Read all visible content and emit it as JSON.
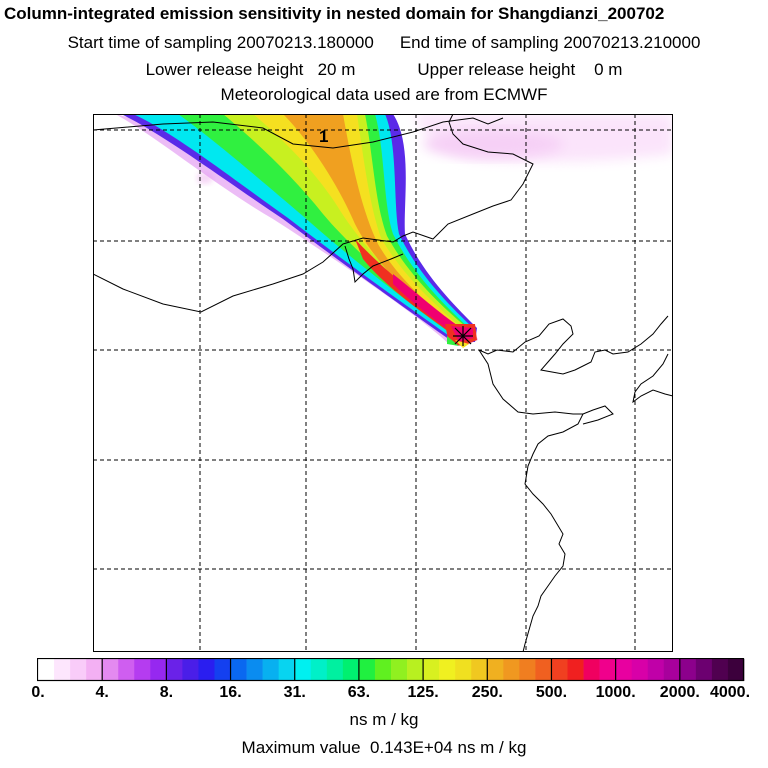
{
  "header": {
    "title": "Column-integrated emission sensitivity in nested domain for Shangdianzi_200702",
    "start_label": "Start time of sampling",
    "start_value": "20070213.180000",
    "end_label": "End time of sampling",
    "end_value": "20070213.210000",
    "lower_label": "Lower release height",
    "lower_value": "20 m",
    "upper_label": "Upper release height",
    "upper_value": "0 m",
    "met_line": "Meteorological data used are from ECMWF"
  },
  "map": {
    "contour_label": "1",
    "receptor_marker": "receptor-star"
  },
  "colorbar": {
    "tick_labels": [
      "0.",
      "4.",
      "8.",
      "16.",
      "31.",
      "63.",
      "125.",
      "250.",
      "500.",
      "1000.",
      "2000.",
      "4000."
    ],
    "colors": [
      "#ffffff",
      "#fde6fd",
      "#f9ccf9",
      "#f3b0f3",
      "#e48af0",
      "#cf5ef0",
      "#b53cf0",
      "#9628f0",
      "#6a22e8",
      "#4a1ee8",
      "#2a1ef0",
      "#1440f0",
      "#0a68f0",
      "#0a8cf0",
      "#08b0f0",
      "#08d4f0",
      "#00f0f0",
      "#00f0c8",
      "#00f0a0",
      "#00f070",
      "#20f040",
      "#60f020",
      "#90f020",
      "#b8f020",
      "#d8f020",
      "#f0f020",
      "#f0e020",
      "#f0c820",
      "#f0b020",
      "#f09820",
      "#f07e20",
      "#f06020",
      "#f04020",
      "#f02020",
      "#f00060",
      "#f0008c",
      "#e800a0",
      "#d800a8",
      "#c000a8",
      "#a8009c",
      "#8c008c",
      "#6c0070",
      "#500050",
      "#3c003c"
    ],
    "unit": "ns m / kg"
  },
  "footer": {
    "max_label": "Maximum value",
    "max_value": "0.143E+04",
    "max_unit": "ns m / kg"
  }
}
